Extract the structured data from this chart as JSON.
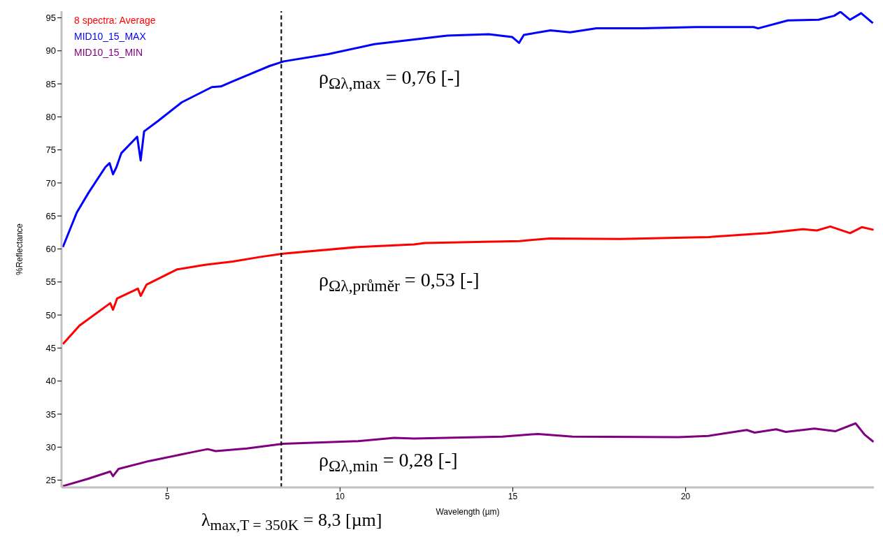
{
  "chart_data": {
    "type": "line",
    "xlabel": "Wavelength (µm)",
    "ylabel": "%Reflectance",
    "xlim": [
      1.94,
      25.45
    ],
    "ylim": [
      23.9,
      96
    ],
    "xticks": [
      5,
      10,
      15,
      20
    ],
    "yticks": [
      25,
      30,
      35,
      40,
      45,
      50,
      55,
      60,
      65,
      70,
      75,
      80,
      85,
      90,
      95
    ],
    "grid": false,
    "legend": "top left",
    "marker": "none",
    "line_style": "solid",
    "series": [
      {
        "name": "8 spectra: Average",
        "color": "#ff0000",
        "x": [
          1.98,
          2.46,
          3.35,
          3.43,
          3.55,
          4.15,
          4.23,
          4.4,
          5.28,
          6.09,
          6.9,
          7.7,
          8.35,
          10.52,
          12.14,
          12.46,
          15.2,
          16.07,
          18.1,
          20.66,
          22.36,
          23.39,
          23.8,
          24.19,
          24.76,
          25.1,
          25.44
        ],
        "values": [
          45.6,
          48.4,
          51.8,
          50.8,
          52.5,
          54.0,
          52.9,
          54.6,
          56.9,
          57.6,
          58.1,
          58.8,
          59.3,
          60.3,
          60.7,
          60.9,
          61.2,
          61.6,
          61.5,
          61.8,
          62.4,
          63.0,
          62.8,
          63.4,
          62.4,
          63.3,
          62.9
        ]
      },
      {
        "name": "MID10_15_MAX",
        "color": "#0000ff",
        "x": [
          1.98,
          2.38,
          2.72,
          3.21,
          3.33,
          3.43,
          3.53,
          3.67,
          4.13,
          4.23,
          4.33,
          4.74,
          5.42,
          6.29,
          6.55,
          6.9,
          7.36,
          7.96,
          8.37,
          9.66,
          10.99,
          13.1,
          14.3,
          14.98,
          15.18,
          15.32,
          16.09,
          16.66,
          17.42,
          18.75,
          20.3,
          21.97,
          22.1,
          22.96,
          23.85,
          24.3,
          24.48,
          24.76,
          25.08,
          25.42
        ],
        "values": [
          60.3,
          65.5,
          68.5,
          72.4,
          73.0,
          71.3,
          72.4,
          74.5,
          77.0,
          73.4,
          77.8,
          79.4,
          82.2,
          84.5,
          84.6,
          85.4,
          86.4,
          87.7,
          88.4,
          89.5,
          91.0,
          92.3,
          92.5,
          92.1,
          91.2,
          92.4,
          93.1,
          92.8,
          93.4,
          93.4,
          93.6,
          93.6,
          93.4,
          94.6,
          94.7,
          95.3,
          95.9,
          94.7,
          95.7,
          94.2
        ]
      },
      {
        "name": "MID10_15_MIN",
        "color": "#800080",
        "x": [
          1.98,
          2.7,
          3.35,
          3.43,
          3.59,
          4.48,
          5.69,
          6.17,
          6.4,
          7.3,
          8.35,
          10.52,
          11.57,
          12.14,
          14.7,
          15.73,
          16.73,
          19.8,
          20.66,
          21.77,
          22.0,
          22.62,
          22.9,
          23.73,
          24.33,
          24.92,
          25.18,
          25.44
        ],
        "values": [
          24.1,
          25.2,
          26.3,
          25.6,
          26.7,
          27.9,
          29.2,
          29.7,
          29.4,
          29.8,
          30.5,
          30.9,
          31.4,
          31.3,
          31.6,
          32.0,
          31.6,
          31.5,
          31.7,
          32.6,
          32.2,
          32.7,
          32.3,
          32.8,
          32.4,
          33.6,
          31.9,
          30.8
        ]
      }
    ],
    "ref_lines": [
      {
        "axis": "x",
        "value": 8.3,
        "color": "#000000",
        "line_style": "dashed"
      }
    ],
    "annotations": [
      "λ$_{max,T = 350K}$ = 8,3 [µm]",
      "ρ$_{Ωλ,max}$ = 0,76 [-]",
      "ρ$_{Ωλ,průměr}$ = 0,53 [-]",
      "ρ$_{Ωλ,min}$ = 0,28 [-]"
    ]
  }
}
